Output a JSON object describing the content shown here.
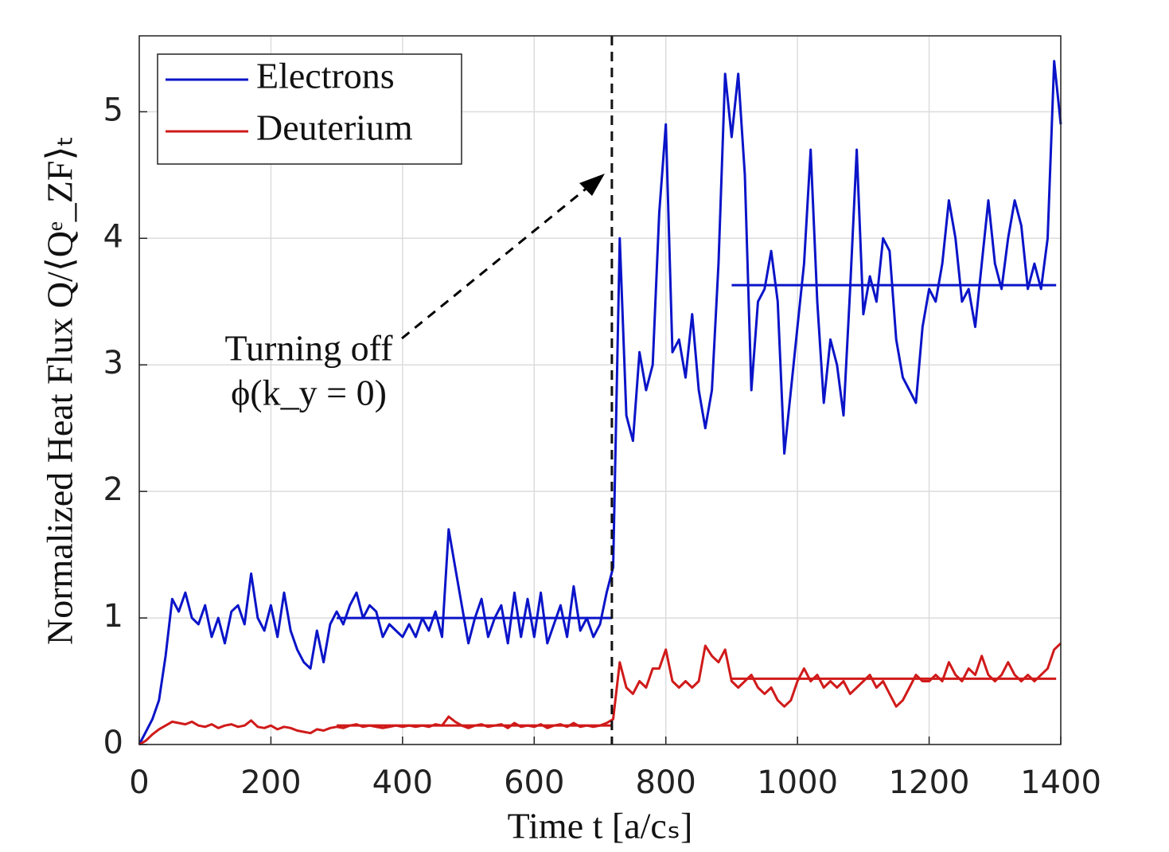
{
  "chart_data": {
    "type": "line",
    "xlabel": "Time t [a/cₛ]",
    "ylabel": "Normalized Heat Flux Q/⟨Qᵉ_ZF⟩ₜ",
    "xlim": [
      0,
      1400
    ],
    "xticks": [
      0,
      200,
      400,
      600,
      800,
      1000,
      1200,
      1400
    ],
    "ylim": [
      0,
      5.6
    ],
    "yticks": [
      0,
      1,
      2,
      3,
      4,
      5
    ],
    "grid": true,
    "legend": "upper left",
    "x": [
      0,
      10,
      20,
      30,
      40,
      50,
      60,
      70,
      80,
      90,
      100,
      110,
      120,
      130,
      140,
      150,
      160,
      170,
      180,
      190,
      200,
      210,
      220,
      230,
      240,
      250,
      260,
      270,
      280,
      290,
      300,
      310,
      320,
      330,
      340,
      350,
      360,
      370,
      380,
      390,
      400,
      410,
      420,
      430,
      440,
      450,
      460,
      470,
      480,
      490,
      500,
      510,
      520,
      530,
      540,
      550,
      560,
      570,
      580,
      590,
      600,
      610,
      620,
      630,
      640,
      650,
      660,
      670,
      680,
      690,
      700,
      710,
      720,
      730,
      740,
      750,
      760,
      770,
      780,
      790,
      800,
      810,
      820,
      830,
      840,
      850,
      860,
      870,
      880,
      890,
      900,
      910,
      920,
      930,
      940,
      950,
      960,
      970,
      980,
      990,
      1000,
      1010,
      1020,
      1030,
      1040,
      1050,
      1060,
      1070,
      1080,
      1090,
      1100,
      1110,
      1120,
      1130,
      1140,
      1150,
      1160,
      1170,
      1180,
      1190,
      1200,
      1210,
      1220,
      1230,
      1240,
      1250,
      1260,
      1270,
      1280,
      1290,
      1300,
      1310,
      1320,
      1330,
      1340,
      1350,
      1360,
      1370,
      1380,
      1390,
      1400
    ],
    "series": [
      {
        "name": "Electrons",
        "color": "#0a14c8",
        "values": [
          0,
          0.1,
          0.2,
          0.35,
          0.7,
          1.15,
          1.05,
          1.2,
          1.0,
          0.95,
          1.1,
          0.85,
          1.0,
          0.8,
          1.05,
          1.1,
          0.95,
          1.35,
          1.0,
          0.9,
          1.1,
          0.85,
          1.2,
          0.9,
          0.75,
          0.65,
          0.6,
          0.9,
          0.65,
          0.95,
          1.05,
          0.95,
          1.1,
          1.2,
          1.0,
          1.1,
          1.05,
          0.85,
          0.95,
          0.9,
          0.85,
          0.95,
          0.85,
          1.0,
          0.9,
          1.05,
          0.85,
          1.7,
          1.4,
          1.1,
          0.8,
          1.0,
          1.15,
          0.85,
          1.0,
          1.1,
          0.8,
          1.2,
          0.85,
          1.15,
          0.85,
          1.2,
          0.8,
          0.95,
          1.1,
          0.85,
          1.25,
          0.9,
          1.0,
          0.85,
          0.95,
          1.2,
          1.4,
          4.0,
          2.6,
          2.4,
          3.1,
          2.8,
          3.0,
          4.2,
          4.9,
          3.1,
          3.2,
          2.9,
          3.4,
          2.8,
          2.5,
          2.8,
          3.8,
          5.3,
          4.8,
          5.3,
          4.5,
          2.8,
          3.5,
          3.6,
          3.9,
          3.5,
          2.3,
          2.8,
          3.3,
          3.8,
          4.7,
          3.5,
          2.7,
          3.2,
          3.0,
          2.6,
          3.6,
          4.7,
          3.4,
          3.7,
          3.5,
          4.0,
          3.9,
          3.2,
          2.9,
          2.8,
          2.7,
          3.3,
          3.6,
          3.5,
          3.8,
          4.3,
          4.0,
          3.5,
          3.6,
          3.3,
          3.8,
          4.3,
          3.8,
          3.6,
          4.0,
          4.3,
          4.1,
          3.6,
          3.8,
          3.6,
          4.0,
          5.4,
          4.9
        ]
      },
      {
        "name": "Deuterium",
        "color": "#d01a1a",
        "values": [
          0,
          0.03,
          0.08,
          0.12,
          0.15,
          0.18,
          0.17,
          0.16,
          0.18,
          0.15,
          0.14,
          0.16,
          0.13,
          0.15,
          0.16,
          0.14,
          0.15,
          0.19,
          0.14,
          0.13,
          0.15,
          0.12,
          0.14,
          0.13,
          0.11,
          0.1,
          0.09,
          0.12,
          0.11,
          0.13,
          0.14,
          0.13,
          0.15,
          0.16,
          0.14,
          0.15,
          0.14,
          0.13,
          0.14,
          0.15,
          0.14,
          0.15,
          0.14,
          0.15,
          0.14,
          0.16,
          0.15,
          0.22,
          0.18,
          0.15,
          0.13,
          0.15,
          0.16,
          0.14,
          0.15,
          0.16,
          0.13,
          0.17,
          0.14,
          0.15,
          0.14,
          0.16,
          0.13,
          0.15,
          0.16,
          0.14,
          0.17,
          0.14,
          0.15,
          0.14,
          0.15,
          0.17,
          0.2,
          0.65,
          0.45,
          0.4,
          0.5,
          0.45,
          0.6,
          0.6,
          0.75,
          0.5,
          0.45,
          0.5,
          0.45,
          0.5,
          0.78,
          0.7,
          0.65,
          0.75,
          0.5,
          0.45,
          0.5,
          0.55,
          0.45,
          0.4,
          0.45,
          0.35,
          0.3,
          0.35,
          0.5,
          0.6,
          0.5,
          0.55,
          0.45,
          0.5,
          0.45,
          0.5,
          0.4,
          0.45,
          0.5,
          0.55,
          0.45,
          0.5,
          0.4,
          0.3,
          0.35,
          0.45,
          0.55,
          0.5,
          0.5,
          0.55,
          0.5,
          0.65,
          0.55,
          0.5,
          0.6,
          0.55,
          0.7,
          0.55,
          0.5,
          0.55,
          0.65,
          0.55,
          0.5,
          0.55,
          0.5,
          0.55,
          0.6,
          0.75,
          0.8
        ]
      }
    ],
    "reference_lines": [
      {
        "x": [
          300,
          718
        ],
        "value": 1.0,
        "color": "#0a14c8"
      },
      {
        "x": [
          900,
          1393
        ],
        "value": 3.63,
        "color": "#0a14c8"
      },
      {
        "x": [
          300,
          718
        ],
        "value": 0.15,
        "color": "#d01a1a"
      },
      {
        "x": [
          900,
          1393
        ],
        "value": 0.52,
        "color": "#d01a1a"
      }
    ],
    "vline": 718,
    "annotation": [
      "Turning off",
      "ϕ(k_y = 0)"
    ]
  }
}
